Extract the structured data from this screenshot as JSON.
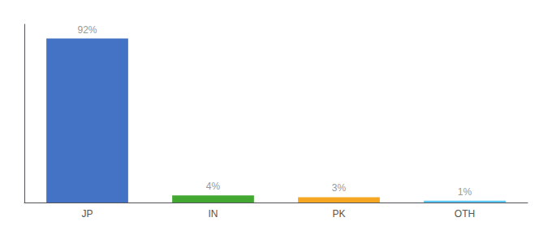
{
  "chart_data": {
    "type": "bar",
    "categories": [
      "JP",
      "IN",
      "PK",
      "OTH"
    ],
    "values": [
      92,
      4,
      3,
      1
    ],
    "value_labels": [
      "92%",
      "4%",
      "3%",
      "1%"
    ],
    "colors": [
      "#4472c4",
      "#43a832",
      "#f5a623",
      "#5bc8f5"
    ],
    "ylim": [
      0,
      100
    ],
    "data_labels": true,
    "tick_labels": "x",
    "grid": false
  }
}
